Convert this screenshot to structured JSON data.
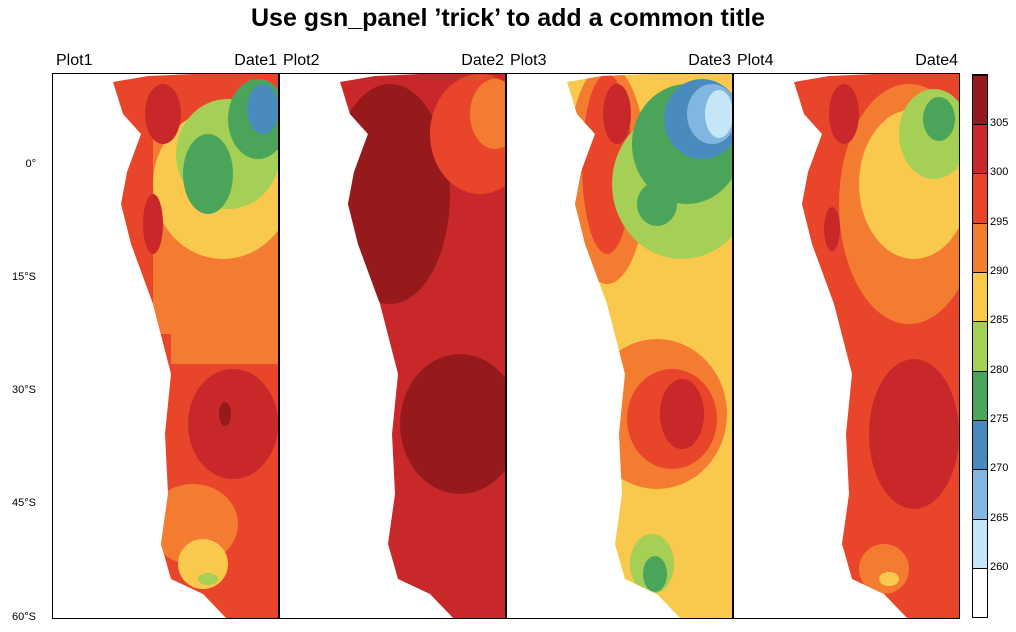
{
  "title": "Use gsn_panel ’trick’ to add a common title",
  "latitude_labels": [
    "0°",
    "15°S",
    "30°S",
    "45°S",
    "60°S"
  ],
  "panels": [
    {
      "left": "Plot1",
      "right": "Date1"
    },
    {
      "left": "Plot2",
      "right": "Date2"
    },
    {
      "left": "Plot3",
      "right": "Date3"
    },
    {
      "left": "Plot4",
      "right": "Date4"
    }
  ],
  "colorbar": {
    "labels": [
      "305",
      "300",
      "295",
      "290",
      "285",
      "280",
      "275",
      "270",
      "265",
      "260"
    ],
    "colors": [
      "#961a1c",
      "#c8282a",
      "#e8452b",
      "#f47c31",
      "#f9c94e",
      "#a6cf56",
      "#4aa55a",
      "#4a8bbd",
      "#80b6e0",
      "#c4e6f7",
      "#ffffff"
    ]
  }
}
